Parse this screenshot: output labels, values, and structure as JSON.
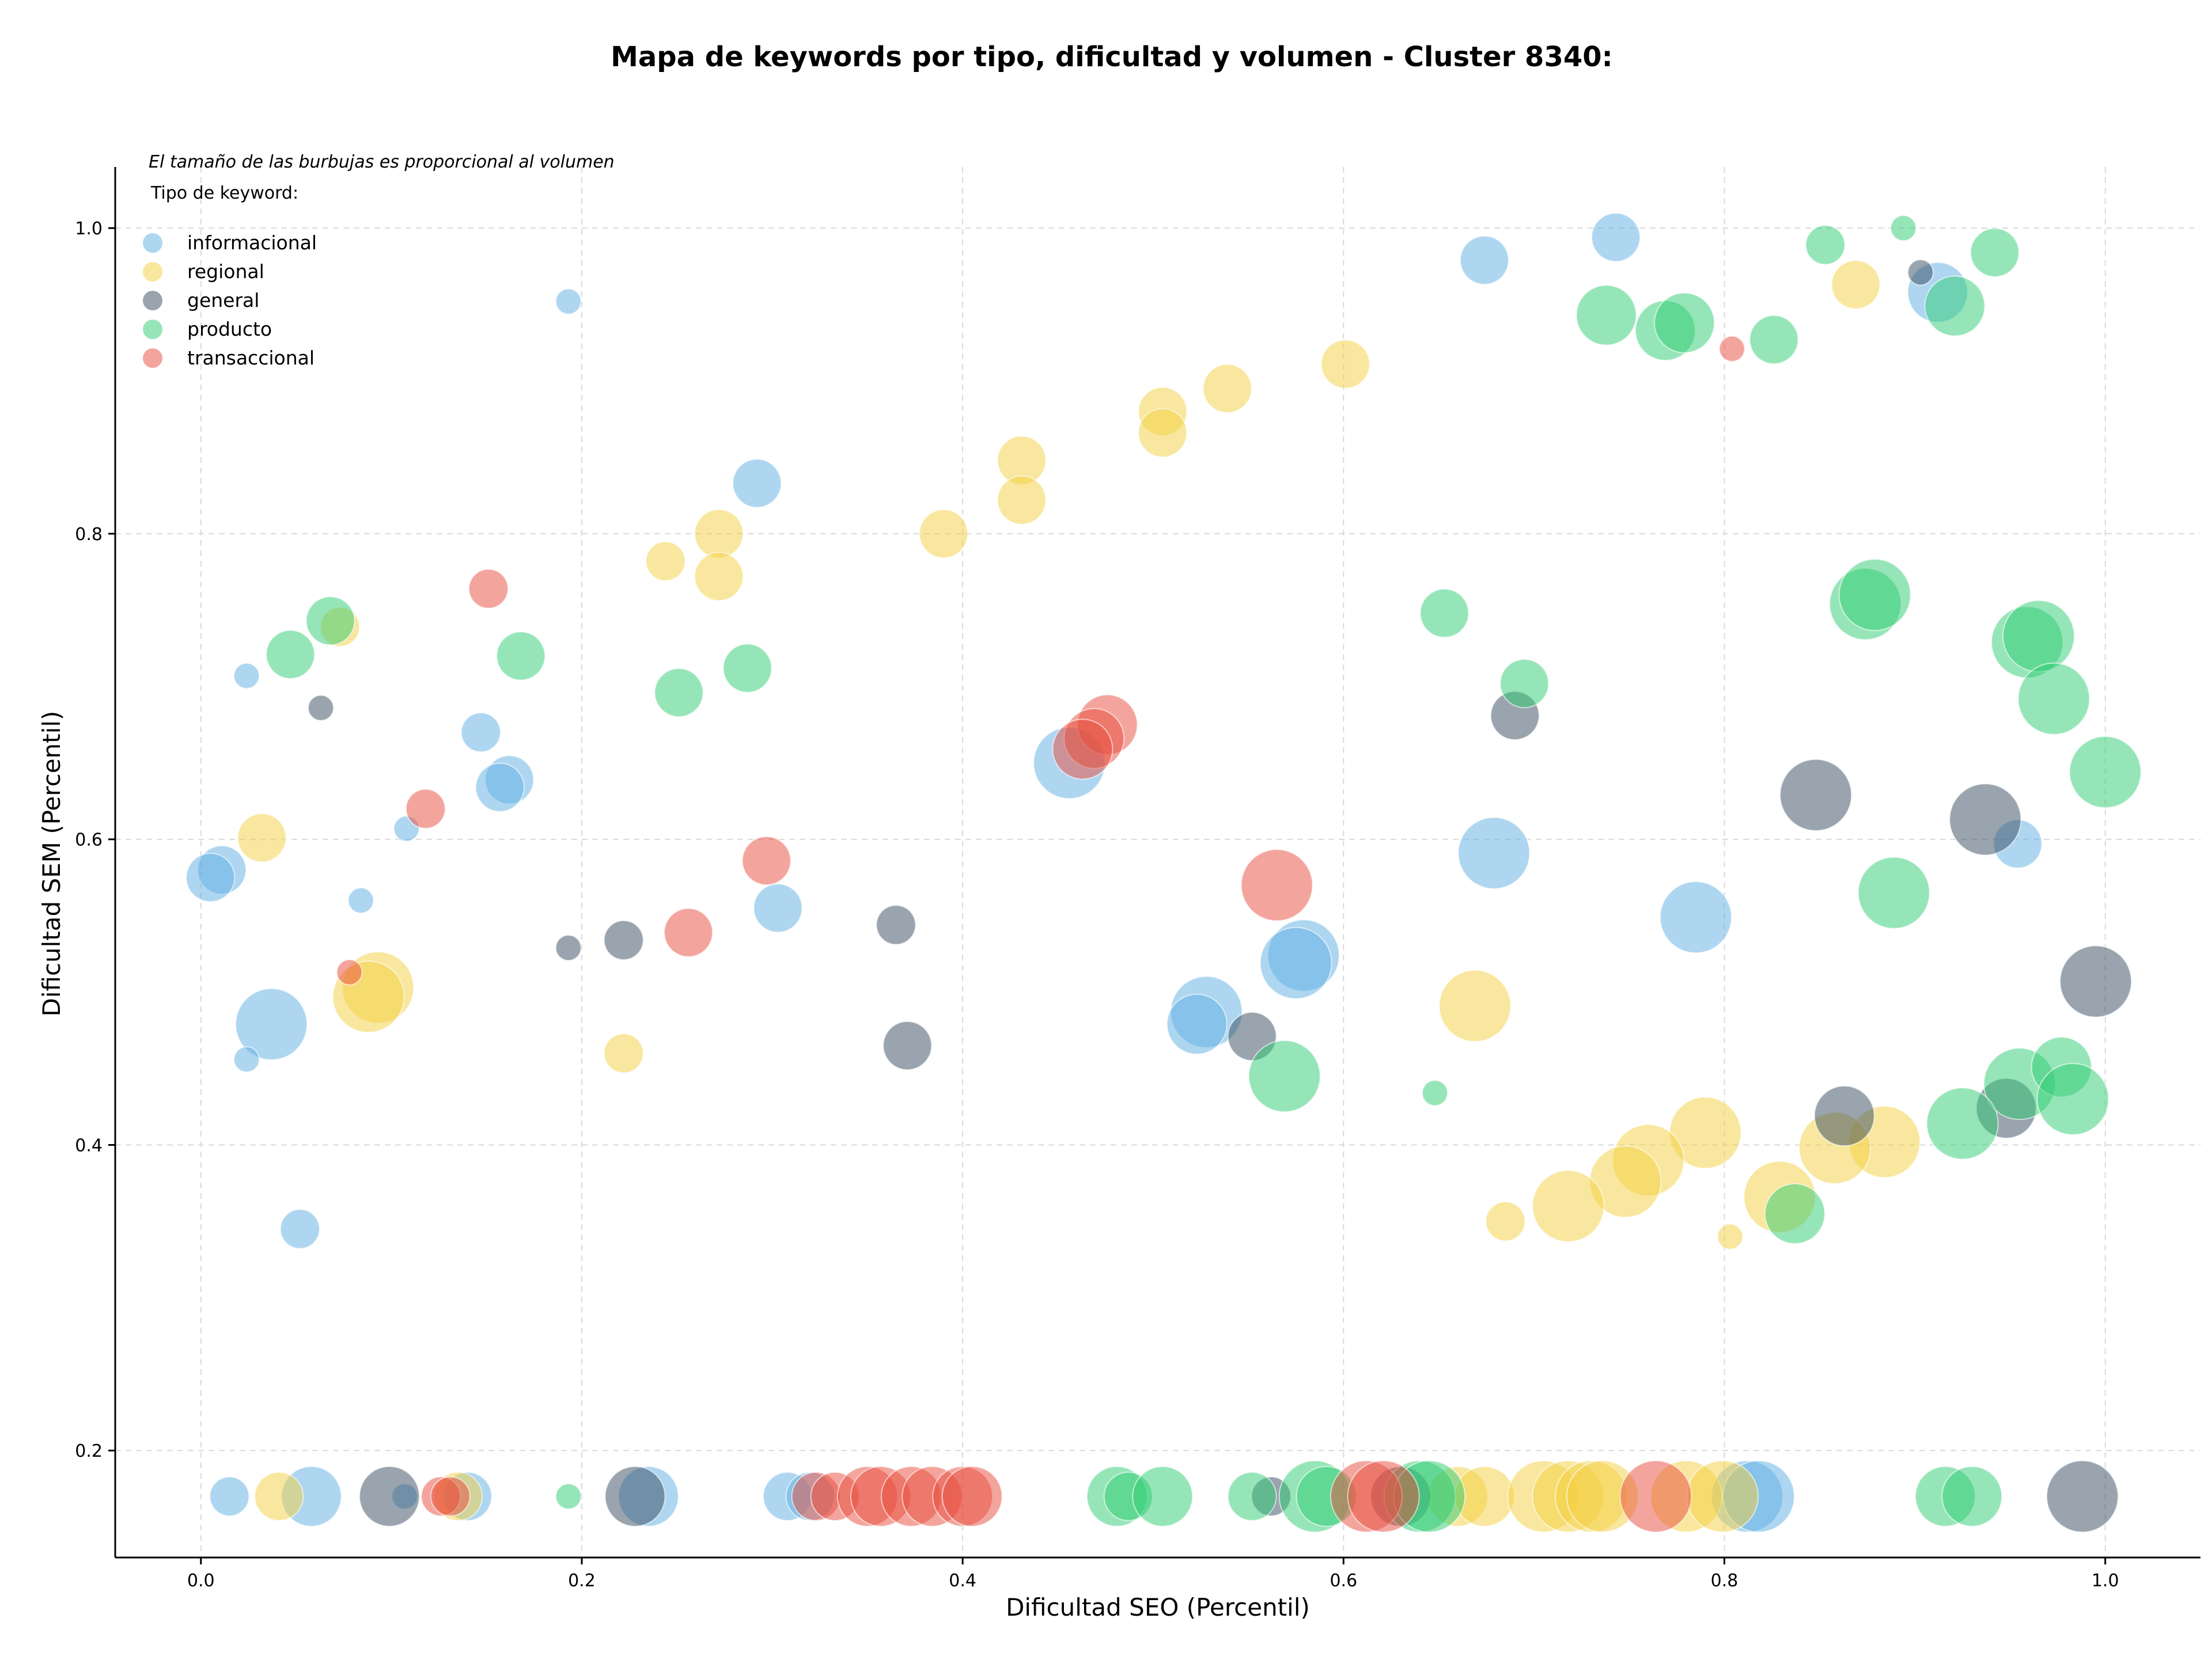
{
  "chart_data": {
    "type": "scatter",
    "title": "Mapa de keywords por tipo, dificultad y volumen - Cluster 8340:",
    "xlabel": "Dificultad SEO (Percentil)",
    "ylabel": "Dificultad SEM (Percentil)",
    "note": "El tamaño de las burbujas es proporcional al volumen",
    "legend_title": "Tipo de keyword:",
    "legend_position": "top-left",
    "grid": true,
    "xlim": [
      -0.045,
      1.05
    ],
    "ylim": [
      0.13,
      1.04
    ],
    "xticks": [
      0.0,
      0.2,
      0.4,
      0.6,
      0.8,
      1.0
    ],
    "xtick_labels": [
      "0.0",
      "0.2",
      "0.4",
      "0.6",
      "0.8",
      "1.0"
    ],
    "yticks": [
      0.2,
      0.4,
      0.6,
      0.8,
      1.0
    ],
    "ytick_labels": [
      "0.2",
      "0.4",
      "0.6",
      "0.8",
      "1.0"
    ],
    "series": [
      {
        "name": "informacional",
        "color": "#5DADE2",
        "points": [
          [
            0.193,
            0.952,
            1
          ],
          [
            0.743,
            0.994,
            3
          ],
          [
            0.674,
            0.979,
            3
          ],
          [
            0.912,
            0.958,
            4
          ],
          [
            0.292,
            0.833,
            3
          ],
          [
            0.024,
            0.707,
            1
          ],
          [
            0.147,
            0.67,
            2
          ],
          [
            0.162,
            0.639,
            3
          ],
          [
            0.157,
            0.634,
            3
          ],
          [
            0.108,
            0.607,
            1
          ],
          [
            0.011,
            0.58,
            3
          ],
          [
            0.005,
            0.575,
            3
          ],
          [
            0.084,
            0.56,
            1
          ],
          [
            0.303,
            0.555,
            3
          ],
          [
            0.456,
            0.65,
            5
          ],
          [
            0.679,
            0.591,
            5
          ],
          [
            0.785,
            0.549,
            5
          ],
          [
            0.954,
            0.597,
            3
          ],
          [
            0.579,
            0.524,
            5
          ],
          [
            0.575,
            0.519,
            5
          ],
          [
            0.528,
            0.487,
            5
          ],
          [
            0.523,
            0.479,
            4
          ],
          [
            0.037,
            0.479,
            5
          ],
          [
            0.024,
            0.456,
            1
          ],
          [
            0.052,
            0.345,
            2
          ],
          [
            0.015,
            0.17,
            2
          ],
          [
            0.058,
            0.17,
            4
          ],
          [
            0.107,
            0.17,
            1
          ],
          [
            0.14,
            0.17,
            3
          ],
          [
            0.235,
            0.17,
            4
          ],
          [
            0.308,
            0.17,
            3
          ],
          [
            0.32,
            0.17,
            3
          ],
          [
            0.812,
            0.17,
            5
          ],
          [
            0.818,
            0.17,
            5
          ]
        ]
      },
      {
        "name": "regional",
        "color": "#F4D03F",
        "points": [
          [
            0.869,
            0.963,
            3
          ],
          [
            0.601,
            0.911,
            3
          ],
          [
            0.539,
            0.895,
            3
          ],
          [
            0.505,
            0.88,
            3
          ],
          [
            0.505,
            0.866,
            3
          ],
          [
            0.431,
            0.848,
            3
          ],
          [
            0.431,
            0.822,
            3
          ],
          [
            0.272,
            0.8,
            3
          ],
          [
            0.39,
            0.8,
            3
          ],
          [
            0.244,
            0.782,
            2
          ],
          [
            0.272,
            0.772,
            3
          ],
          [
            0.073,
            0.739,
            2
          ],
          [
            0.032,
            0.601,
            3
          ],
          [
            0.093,
            0.503,
            5
          ],
          [
            0.088,
            0.497,
            5
          ],
          [
            0.669,
            0.491,
            5
          ],
          [
            0.222,
            0.46,
            2
          ],
          [
            0.79,
            0.408,
            5
          ],
          [
            0.884,
            0.402,
            5
          ],
          [
            0.858,
            0.398,
            5
          ],
          [
            0.76,
            0.39,
            5
          ],
          [
            0.748,
            0.376,
            5
          ],
          [
            0.718,
            0.36,
            5
          ],
          [
            0.829,
            0.366,
            5
          ],
          [
            0.685,
            0.35,
            2
          ],
          [
            0.803,
            0.34,
            1
          ],
          [
            0.041,
            0.17,
            3
          ],
          [
            0.135,
            0.17,
            3
          ],
          [
            0.66,
            0.17,
            4
          ],
          [
            0.674,
            0.17,
            4
          ],
          [
            0.705,
            0.17,
            5
          ],
          [
            0.718,
            0.17,
            5
          ],
          [
            0.73,
            0.17,
            5
          ],
          [
            0.736,
            0.17,
            5
          ],
          [
            0.78,
            0.17,
            5
          ],
          [
            0.799,
            0.17,
            5
          ]
        ]
      },
      {
        "name": "general",
        "color": "#34495E",
        "points": [
          [
            0.903,
            0.971,
            1
          ],
          [
            0.063,
            0.686,
            1
          ],
          [
            0.69,
            0.681,
            3
          ],
          [
            0.848,
            0.629,
            5
          ],
          [
            0.937,
            0.613,
            5
          ],
          [
            0.995,
            0.507,
            5
          ],
          [
            0.193,
            0.529,
            1
          ],
          [
            0.222,
            0.534,
            2
          ],
          [
            0.365,
            0.544,
            2
          ],
          [
            0.371,
            0.465,
            3
          ],
          [
            0.552,
            0.471,
            3
          ],
          [
            0.863,
            0.419,
            4
          ],
          [
            0.948,
            0.424,
            4
          ],
          [
            0.099,
            0.17,
            4
          ],
          [
            0.228,
            0.17,
            4
          ],
          [
            0.562,
            0.17,
            2
          ],
          [
            0.63,
            0.17,
            4
          ],
          [
            0.988,
            0.17,
            5
          ]
        ]
      },
      {
        "name": "producto",
        "color": "#2ECC71",
        "points": [
          [
            0.894,
            1.0,
            1
          ],
          [
            0.853,
            0.989,
            2
          ],
          [
            0.942,
            0.984,
            3
          ],
          [
            0.921,
            0.949,
            4
          ],
          [
            0.738,
            0.943,
            4
          ],
          [
            0.769,
            0.933,
            4
          ],
          [
            0.779,
            0.938,
            4
          ],
          [
            0.826,
            0.927,
            3
          ],
          [
            0.068,
            0.743,
            3
          ],
          [
            0.047,
            0.721,
            3
          ],
          [
            0.168,
            0.72,
            3
          ],
          [
            0.287,
            0.712,
            3
          ],
          [
            0.251,
            0.696,
            3
          ],
          [
            0.653,
            0.748,
            3
          ],
          [
            0.695,
            0.702,
            3
          ],
          [
            0.874,
            0.754,
            5
          ],
          [
            0.879,
            0.76,
            5
          ],
          [
            0.959,
            0.729,
            5
          ],
          [
            0.965,
            0.733,
            5
          ],
          [
            0.973,
            0.692,
            5
          ],
          [
            1.0,
            0.644,
            5
          ],
          [
            0.889,
            0.565,
            5
          ],
          [
            0.569,
            0.445,
            5
          ],
          [
            0.648,
            0.434,
            1
          ],
          [
            0.955,
            0.44,
            5
          ],
          [
            0.977,
            0.451,
            4
          ],
          [
            0.983,
            0.43,
            5
          ],
          [
            0.925,
            0.414,
            5
          ],
          [
            0.837,
            0.355,
            4
          ],
          [
            0.193,
            0.17,
            1
          ],
          [
            0.481,
            0.17,
            4
          ],
          [
            0.487,
            0.17,
            3
          ],
          [
            0.505,
            0.17,
            4
          ],
          [
            0.552,
            0.17,
            3
          ],
          [
            0.585,
            0.17,
            5
          ],
          [
            0.591,
            0.17,
            4
          ],
          [
            0.64,
            0.17,
            5
          ],
          [
            0.645,
            0.17,
            5
          ],
          [
            0.916,
            0.17,
            4
          ],
          [
            0.93,
            0.17,
            4
          ]
        ]
      },
      {
        "name": "transaccional",
        "color": "#E74C3C",
        "points": [
          [
            0.804,
            0.921,
            1
          ],
          [
            0.151,
            0.764,
            2
          ],
          [
            0.118,
            0.62,
            2
          ],
          [
            0.476,
            0.675,
            4
          ],
          [
            0.469,
            0.666,
            4
          ],
          [
            0.463,
            0.659,
            4
          ],
          [
            0.297,
            0.586,
            3
          ],
          [
            0.565,
            0.57,
            5
          ],
          [
            0.256,
            0.539,
            3
          ],
          [
            0.078,
            0.513,
            1
          ],
          [
            0.126,
            0.17,
            2
          ],
          [
            0.131,
            0.17,
            2
          ],
          [
            0.323,
            0.17,
            3
          ],
          [
            0.333,
            0.17,
            3
          ],
          [
            0.35,
            0.17,
            4
          ],
          [
            0.357,
            0.17,
            4
          ],
          [
            0.373,
            0.17,
            4
          ],
          [
            0.384,
            0.17,
            4
          ],
          [
            0.4,
            0.17,
            4
          ],
          [
            0.405,
            0.17,
            4
          ],
          [
            0.612,
            0.17,
            5
          ],
          [
            0.621,
            0.17,
            5
          ],
          [
            0.764,
            0.17,
            5
          ]
        ]
      }
    ]
  }
}
